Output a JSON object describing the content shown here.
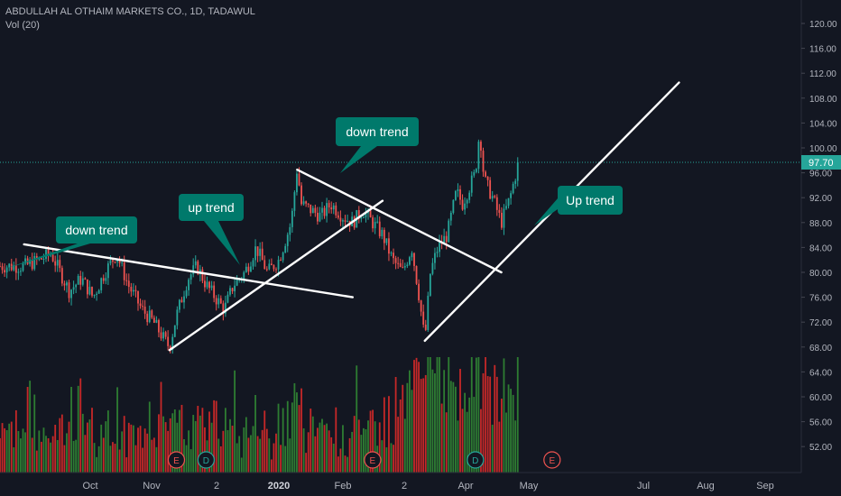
{
  "header": {
    "symbol_line": "ABDULLAH AL OTHAIM MARKETS CO., 1D, TADAWUL",
    "volume_line": "Vol (20)"
  },
  "colors": {
    "background": "#131722",
    "up": "#26a69a",
    "down": "#ef5350",
    "vol_up": "#2e7d32",
    "vol_down": "#c62828",
    "annotation_fill": "#00796b",
    "trendline": "#ffffff",
    "price_label": "#26a69a",
    "earnings": "#ef5350",
    "dividend": "#26a69a"
  },
  "chart_data": {
    "type": "candlestick",
    "y_axis": {
      "ticks": [
        "120.00",
        "116.00",
        "112.00",
        "108.00",
        "104.00",
        "100.00",
        "96.00",
        "92.00",
        "88.00",
        "84.00",
        "80.00",
        "76.00",
        "72.00",
        "68.00",
        "64.00",
        "60.00",
        "56.00",
        "52.00"
      ],
      "last_price": "97.70"
    },
    "x_axis": {
      "ticks": [
        "Oct",
        "Nov",
        "2",
        "2020",
        "Feb",
        "2",
        "Apr",
        "May",
        "Jul",
        "Aug",
        "Sep"
      ]
    },
    "price_path": [
      [
        "Sep 15",
        81
      ],
      [
        "Sep 20",
        82
      ],
      [
        "Sep 24",
        83
      ],
      [
        "Sep 30",
        77
      ],
      [
        "Oct 5",
        79
      ],
      [
        "Oct 10",
        76
      ],
      [
        "Oct 15",
        80
      ],
      [
        "Oct 20",
        83
      ],
      [
        "Oct 25",
        78
      ],
      [
        "Oct 31",
        74
      ],
      [
        "Nov 5",
        72
      ],
      [
        "Nov 10",
        69
      ],
      [
        "Nov 12",
        68
      ],
      [
        "Nov 15",
        73
      ],
      [
        "Nov 20",
        79
      ],
      [
        "Nov 24",
        81
      ],
      [
        "Nov 28",
        78
      ],
      [
        "Dec 2",
        76
      ],
      [
        "Dec 6",
        74
      ],
      [
        "Dec 10",
        78
      ],
      [
        "Dec 15",
        80
      ],
      [
        "Dec 20",
        84
      ],
      [
        "Dec 25",
        80
      ],
      [
        "Dec 30",
        82
      ],
      [
        "Jan 5",
        88
      ],
      [
        "Jan 8",
        97
      ],
      [
        "Jan 10",
        91
      ],
      [
        "Jan 15",
        90
      ],
      [
        "Jan 20",
        89
      ],
      [
        "Jan 25",
        91
      ],
      [
        "Jan 31",
        89
      ],
      [
        "Feb 5",
        88
      ],
      [
        "Feb 10",
        90
      ],
      [
        "Feb 15",
        88
      ],
      [
        "Feb 20",
        86
      ],
      [
        "Feb 25",
        82
      ],
      [
        "Mar 1",
        80
      ],
      [
        "Mar 6",
        84
      ],
      [
        "Mar 10",
        76
      ],
      [
        "Mar 13",
        69
      ],
      [
        "Mar 16",
        80
      ],
      [
        "Mar 20",
        84
      ],
      [
        "Mar 25",
        86
      ],
      [
        "Mar 30",
        93
      ],
      [
        "Apr 2",
        91
      ],
      [
        "Apr 8",
        96
      ],
      [
        "Apr 10",
        103
      ],
      [
        "Apr 12",
        95
      ],
      [
        "Apr 16",
        92
      ],
      [
        "Apr 20",
        88
      ],
      [
        "Apr 24",
        92
      ],
      [
        "Apr 28",
        97.7
      ]
    ],
    "volume_axis_note": "relative",
    "events": [
      {
        "date": "Nov 15",
        "kind": "E"
      },
      {
        "date": "Nov 28",
        "kind": "D"
      },
      {
        "date": "Feb 15",
        "kind": "E"
      },
      {
        "date": "Apr 8",
        "kind": "D"
      },
      {
        "date": "May 15",
        "kind": "E"
      }
    ],
    "annotations": [
      {
        "text": "down trend"
      },
      {
        "text": "up trend"
      },
      {
        "text": "down trend"
      },
      {
        "text": "Up trend"
      }
    ],
    "trendlines": [
      {
        "from": [
          "Sep 15",
          84.5
        ],
        "to": [
          "Feb 5",
          76
        ]
      },
      {
        "from": [
          "Nov 12",
          67.5
        ],
        "to": [
          "Feb 20",
          91.5
        ]
      },
      {
        "from": [
          "Jan 8",
          96.5
        ],
        "to": [
          "Apr 20",
          80
        ]
      },
      {
        "from": [
          "Mar 13",
          69
        ],
        "to": [
          "Jul 20",
          110.5
        ]
      }
    ]
  }
}
